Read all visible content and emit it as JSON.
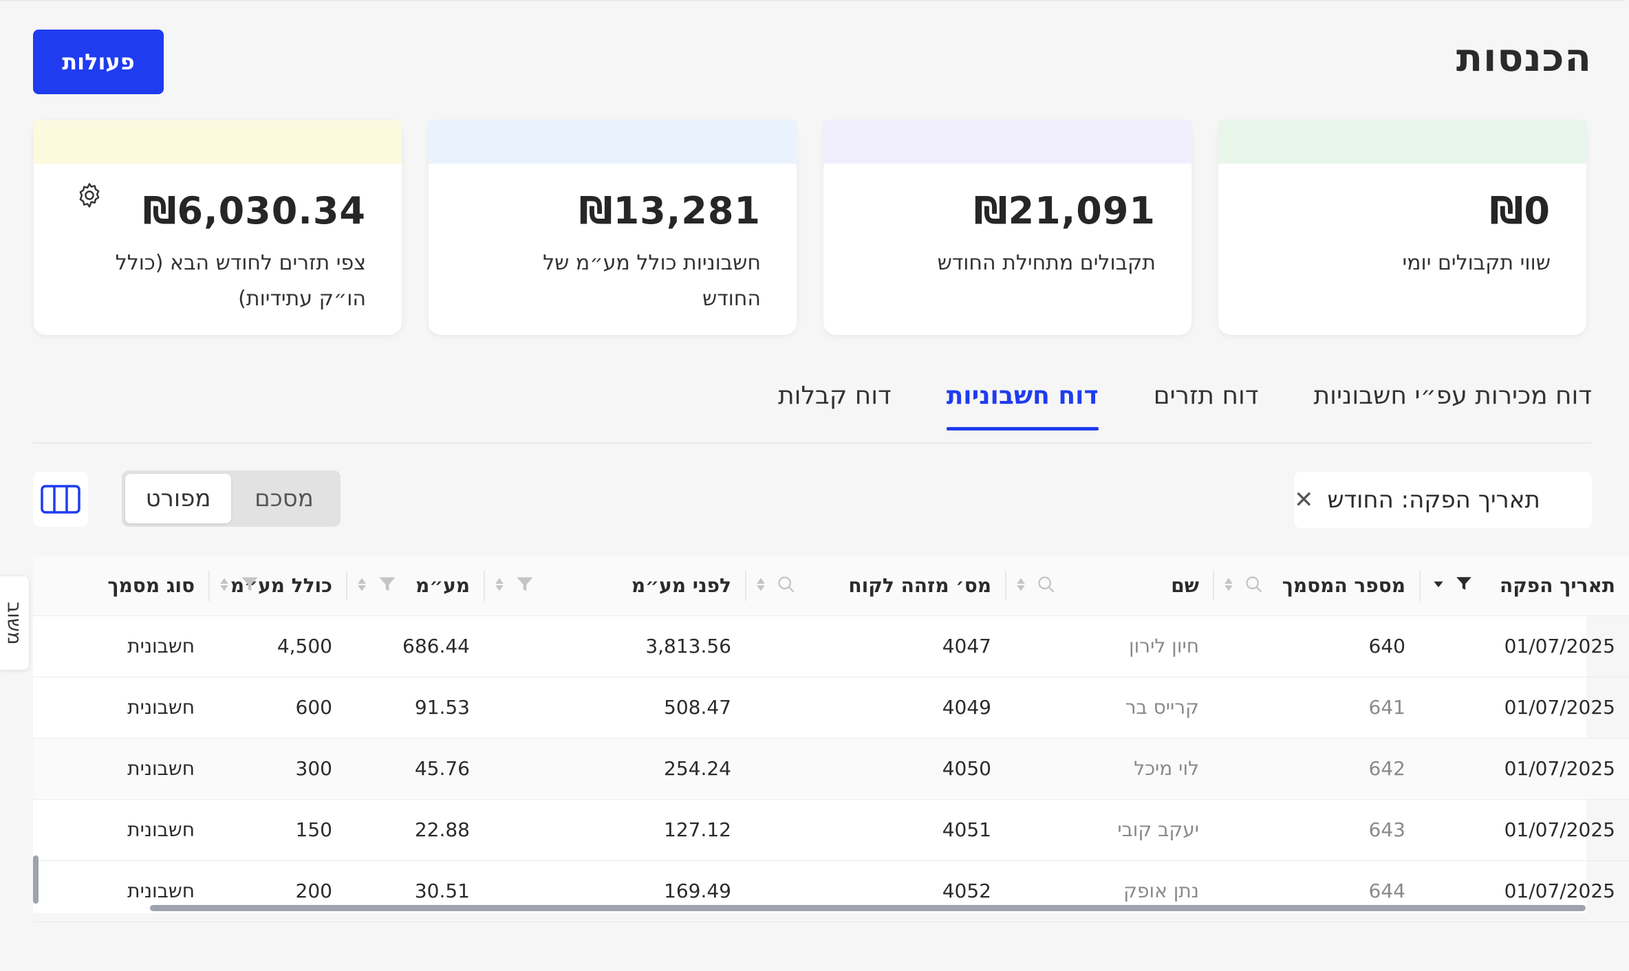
{
  "header": {
    "title": "הכנסות",
    "actions_label": "פעולות"
  },
  "cards": [
    {
      "value": "₪0",
      "label": "שווי תקבולים יומי",
      "band_color": "#e8f6ea"
    },
    {
      "value": "₪21,091",
      "label": "תקבולים מתחילת החודש",
      "band_color": "#f1eefc"
    },
    {
      "value": "₪13,281",
      "label": "חשבוניות כולל מע״מ של החודש",
      "band_color": "#eaf3fd"
    },
    {
      "value": "₪6,030.34",
      "label": "צפי תזרים לחודש הבא (כולל הו״ק עתידיות)",
      "band_color": "#fdf9de",
      "icon": "gear-icon"
    }
  ],
  "tabs": [
    {
      "label": "דוח קבלות",
      "active": false
    },
    {
      "label": "דוח חשבוניות",
      "active": true
    },
    {
      "label": "דוח תזרים",
      "active": false
    },
    {
      "label": "דוח מכירות עפ״י חשבוניות",
      "active": false
    }
  ],
  "filter_chip": {
    "label": "תאריך הפקה: החודש"
  },
  "view_toggle": {
    "summary": "מסכם",
    "detailed": "מפורט",
    "selected": "מפורט"
  },
  "table": {
    "columns": [
      "תאריך הפקה",
      "מספר המסמך",
      "שם",
      "מס׳ מזהה לקוח",
      "לפני מע״מ",
      "מע״מ",
      "כולל מע״מ",
      "סוג מסמך"
    ],
    "rows": [
      [
        "01/07/2025",
        "640",
        "חיון לירון",
        "4047",
        "3,813.56",
        "686.44",
        "4,500",
        "חשבונית"
      ],
      [
        "01/07/2025",
        "641",
        "קרייס בר",
        "4049",
        "508.47",
        "91.53",
        "600",
        "חשבונית"
      ],
      [
        "01/07/2025",
        "642",
        "לוי מיכל",
        "4050",
        "254.24",
        "45.76",
        "300",
        "חשבונית"
      ],
      [
        "01/07/2025",
        "643",
        "יעקב קובי",
        "4051",
        "127.12",
        "22.88",
        "150",
        "חשבונית"
      ],
      [
        "01/07/2025",
        "644",
        "נתן אופק",
        "4052",
        "169.49",
        "30.51",
        "200",
        "חשבונית"
      ]
    ]
  },
  "side_tab": {
    "label": "משוב"
  }
}
